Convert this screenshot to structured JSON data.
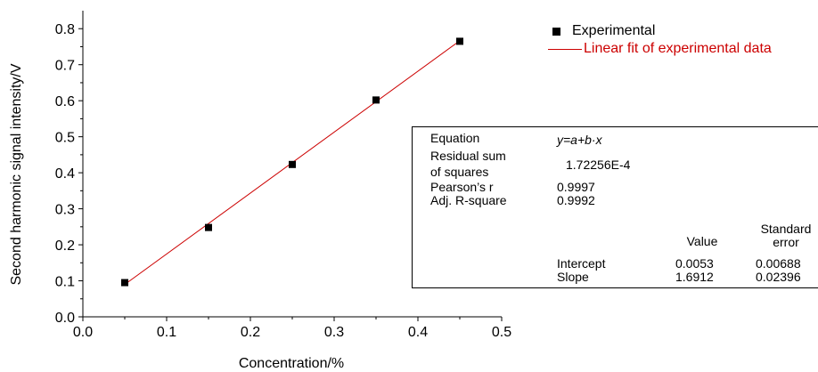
{
  "chart_data": {
    "type": "scatter",
    "xlabel": "Concentration/%",
    "ylabel": "Second harmonic signal intensity/V",
    "xlim": [
      0.0,
      0.5
    ],
    "ylim": [
      0.0,
      0.85
    ],
    "xticks": [
      "0.0",
      "0.1",
      "0.2",
      "0.3",
      "0.4",
      "0.5"
    ],
    "yticks": [
      "0.0",
      "0.1",
      "0.2",
      "0.3",
      "0.4",
      "0.5",
      "0.6",
      "0.7",
      "0.8"
    ],
    "grid": false,
    "legend_position": "top-right",
    "series": [
      {
        "name": "Experimental",
        "kind": "scatter",
        "marker": "square",
        "color": "#000000",
        "x": [
          0.05,
          0.15,
          0.25,
          0.35,
          0.45
        ],
        "y": [
          0.095,
          0.248,
          0.423,
          0.602,
          0.765
        ]
      },
      {
        "name": "Linear fit of experimental data",
        "kind": "line",
        "color": "#cc0000",
        "x": [
          0.05,
          0.45
        ],
        "y": [
          0.0899,
          0.7664
        ]
      }
    ],
    "fit_table": {
      "equation_label": "Equation",
      "equation": "y=a+b·x",
      "rss_label_1": "Residual sum",
      "rss_label_2": "of squares",
      "rss_value": "1.72256E-4",
      "pearson_label": "Pearson’s r",
      "pearson_value": "0.9997",
      "adjr2_label": "Adj. R-square",
      "adjr2_value": "0.9992",
      "value_header": "Value",
      "stderr_header_1": "Standard",
      "stderr_header_2": "error",
      "intercept_label": "Intercept",
      "intercept_value": "0.0053",
      "intercept_error": "0.00688",
      "slope_label": "Slope",
      "slope_value": "1.6912",
      "slope_error": "0.02396"
    }
  }
}
